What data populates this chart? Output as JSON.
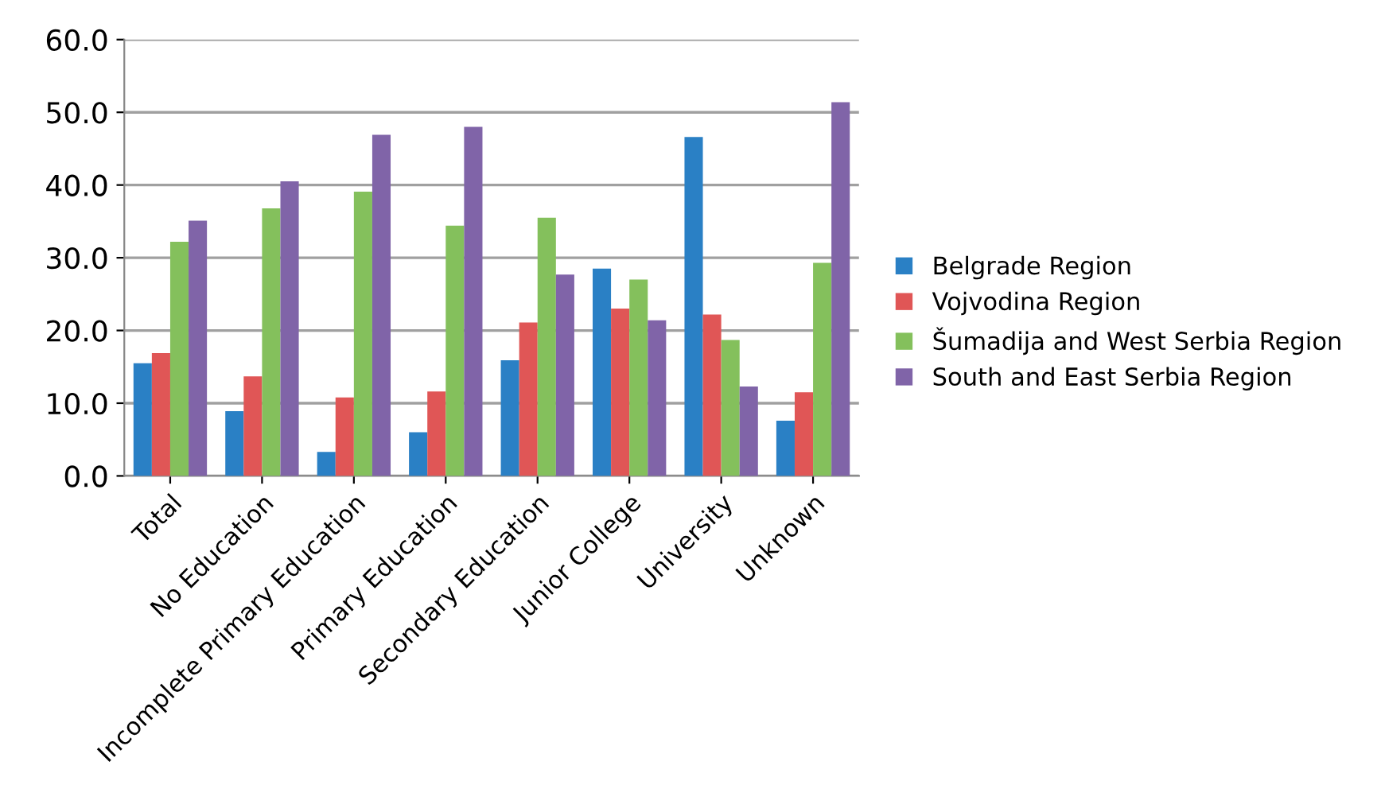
{
  "chart_data": {
    "type": "bar",
    "categories": [
      "Total",
      "No Education",
      "Incomplete Primary Education",
      "Primary Education",
      "Secondary Education",
      "Junior College",
      "University",
      "Unknown"
    ],
    "series": [
      {
        "name": "Belgrade Region",
        "color": "#2a80c5",
        "values": [
          15.5,
          8.9,
          3.3,
          6.0,
          15.9,
          28.5,
          46.6,
          7.6
        ]
      },
      {
        "name": "Vojvodina Region",
        "color": "#e05656",
        "values": [
          16.9,
          13.7,
          10.8,
          11.6,
          21.1,
          23.0,
          22.2,
          11.5
        ]
      },
      {
        "name": "Šumadija and West Serbia Region",
        "color": "#84c05c",
        "values": [
          32.2,
          36.8,
          39.1,
          34.4,
          35.5,
          27.0,
          18.7,
          29.3
        ]
      },
      {
        "name": "South and East Serbia Region",
        "color": "#8064a8",
        "values": [
          35.1,
          40.5,
          46.9,
          48.0,
          27.7,
          21.4,
          12.3,
          51.4
        ]
      }
    ],
    "ylim": [
      0,
      60
    ],
    "yticks": [
      {
        "value": 0,
        "label": "0.0"
      },
      {
        "value": 10,
        "label": "10.0"
      },
      {
        "value": 20,
        "label": "20.0"
      },
      {
        "value": 30,
        "label": "30.0"
      },
      {
        "value": 40,
        "label": "40.0"
      },
      {
        "value": 50,
        "label": "50.0"
      },
      {
        "value": 60,
        "label": "60.0"
      }
    ],
    "grid": "y",
    "legend": "right"
  }
}
